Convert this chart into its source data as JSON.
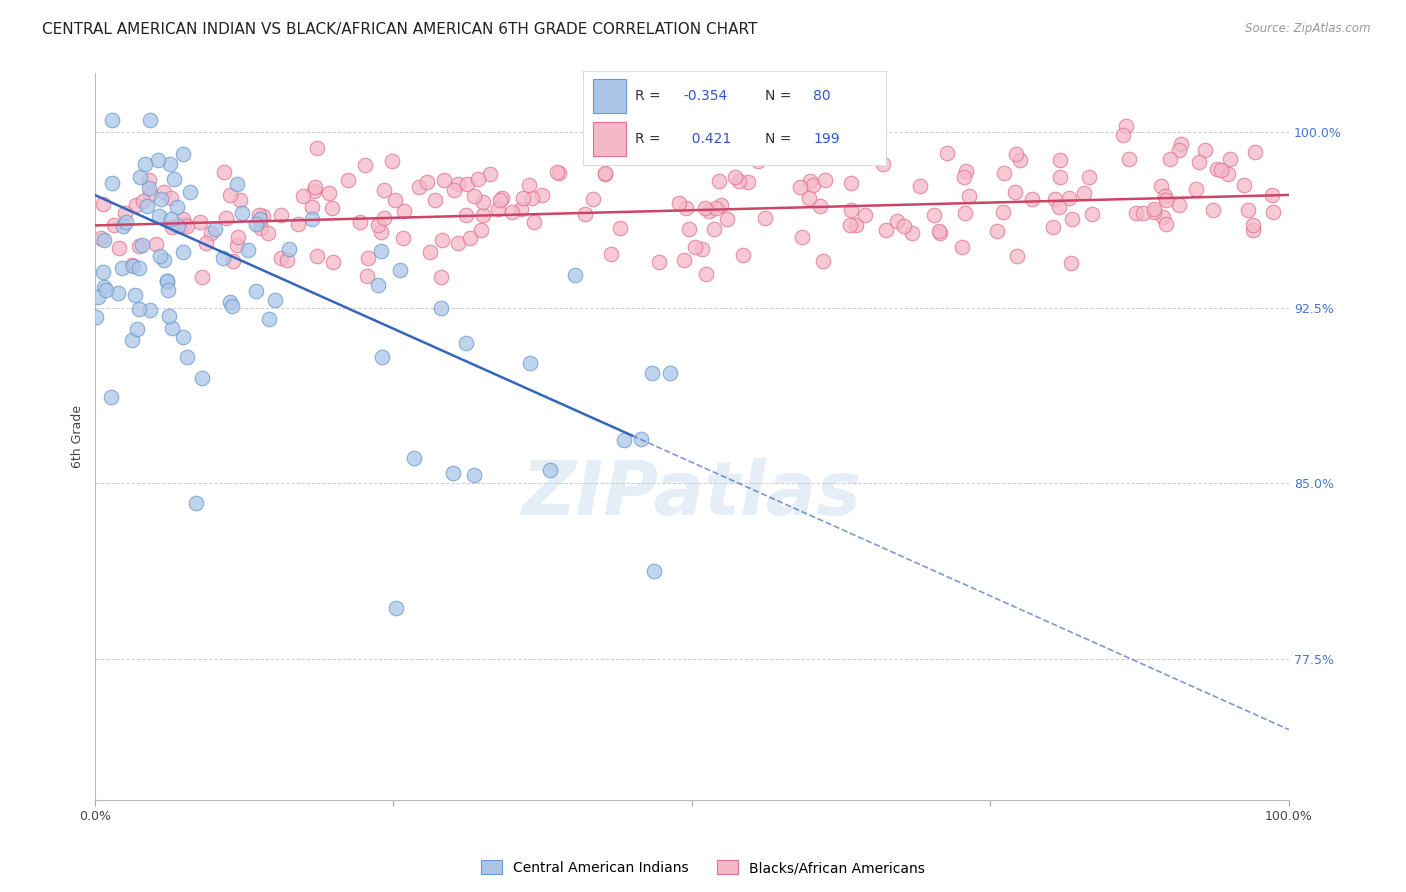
{
  "title": "CENTRAL AMERICAN INDIAN VS BLACK/AFRICAN AMERICAN 6TH GRADE CORRELATION CHART",
  "source": "Source: ZipAtlas.com",
  "ylabel": "6th Grade",
  "blue_R": -0.354,
  "blue_N": 80,
  "pink_R": 0.421,
  "pink_N": 199,
  "legend_blue_label": "Central American Indians",
  "legend_pink_label": "Blacks/African Americans",
  "blue_fill_color": "#adc6e8",
  "pink_fill_color": "#f5b8c8",
  "blue_edge_color": "#6699cc",
  "pink_edge_color": "#e07090",
  "blue_line_color": "#3366bb",
  "pink_line_color": "#cc4466",
  "ytick_labels": [
    "100.0%",
    "92.5%",
    "85.0%",
    "77.5%"
  ],
  "ytick_values": [
    1.0,
    0.925,
    0.85,
    0.775
  ],
  "watermark": "ZIPatlas",
  "xlim": [
    0.0,
    1.0
  ],
  "ylim": [
    0.715,
    1.025
  ],
  "title_fontsize": 11,
  "axis_label_fontsize": 9,
  "tick_fontsize": 9,
  "blue_line_intercept": 0.973,
  "blue_line_slope": -0.228,
  "pink_line_intercept": 0.96,
  "pink_line_slope": 0.013
}
